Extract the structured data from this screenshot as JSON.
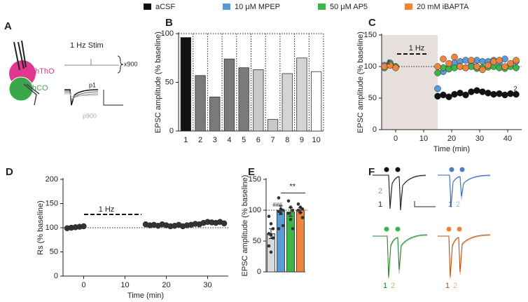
{
  "panel_a": {
    "letter": "A",
    "stim": "1 Hz Stim",
    "repeat": "x900",
    "regions": [
      "hThO",
      "hCO"
    ],
    "traces": [
      "p1",
      "p900"
    ]
  },
  "chart_data": [
    {
      "letter": "B",
      "type": "bar",
      "y_label": "EPSC amplitude (% baseline)",
      "categories": [
        "1",
        "2",
        "3",
        "4",
        "5",
        "6",
        "7",
        "8",
        "9",
        "10"
      ],
      "values": [
        96,
        57,
        35,
        74,
        65,
        63,
        12,
        59,
        75,
        61
      ],
      "colors": [
        "#111111",
        "#7a7a7a",
        "#7a7a7a",
        "#7a7a7a",
        "#7a7a7a",
        "#c9c9c9",
        "#c9c9c9",
        "#d4d4d4",
        "#d4d4d4",
        "#ffffff"
      ],
      "ylim": [
        0,
        100
      ],
      "yticks": [
        0,
        50,
        100
      ],
      "reference_line": 100
    },
    {
      "letter": "C",
      "type": "scatter",
      "x_label": "Time (min)",
      "y_label": "EPSC amplitude (% baseline)",
      "annotations": [
        "1 Hz",
        "1",
        "2"
      ],
      "x": [
        -4,
        -2,
        0,
        15,
        17,
        19,
        21,
        23,
        25,
        27,
        29,
        31,
        33,
        35,
        37,
        39,
        41,
        43
      ],
      "series": [
        {
          "name": "aCSF",
          "color": "#111111",
          "values": [
            100,
            105,
            100,
            53,
            55,
            52,
            56,
            58,
            55,
            60,
            62,
            60,
            58,
            56,
            57,
            55,
            57,
            56
          ]
        },
        {
          "name": "10 μM MPEP",
          "color": "#5b9bd5",
          "values": [
            102,
            106,
            100,
            65,
            92,
            100,
            106,
            108,
            110,
            104,
            110,
            108,
            108,
            110,
            106,
            112,
            104,
            108
          ]
        },
        {
          "name": "50 μM AP5",
          "color": "#3db54a",
          "values": [
            98,
            104,
            100,
            90,
            98,
            96,
            98,
            100,
            98,
            100,
            97,
            98,
            99,
            100,
            98,
            97,
            100,
            98
          ]
        },
        {
          "name": "20 mM iBAPTA",
          "color": "#f0843c",
          "values": [
            100,
            102,
            98,
            100,
            112,
            105,
            115,
            100,
            98,
            110,
            100,
            95,
            102,
            108,
            110,
            100,
            105,
            110
          ]
        }
      ],
      "xlim": [
        -5,
        45
      ],
      "xticks": [
        0,
        10,
        20,
        30,
        40
      ],
      "ylim": [
        0,
        150
      ],
      "yticks": [
        0,
        50,
        100,
        150
      ],
      "reference_line": 100
    },
    {
      "letter": "D",
      "type": "scatter",
      "x_label": "Time (min)",
      "y_label": "Rs (% baseline)",
      "annotations": [
        "1 Hz"
      ],
      "x": [
        -4,
        -3,
        -2,
        -1,
        0,
        15,
        16,
        17,
        18,
        19,
        20,
        21,
        22,
        23,
        24,
        25,
        26,
        27,
        28,
        29,
        30,
        31,
        32,
        33,
        34
      ],
      "series": [
        {
          "color": "#333333",
          "values": [
            99,
            100,
            101,
            102,
            103,
            107,
            105,
            106,
            104,
            107,
            105,
            103,
            104,
            106,
            103,
            105,
            106,
            108,
            107,
            110,
            112,
            111,
            110,
            112,
            109
          ]
        }
      ],
      "xlim": [
        -5,
        35
      ],
      "xticks": [
        0,
        10,
        20,
        30
      ],
      "ylim": [
        0,
        200
      ],
      "yticks": [
        0,
        50,
        100,
        150,
        200
      ],
      "reference_line": 100
    },
    {
      "letter": "E",
      "type": "bar",
      "y_label": "EPSC amplitude (% baseline)",
      "annotations": [
        "###",
        "**"
      ],
      "categories": [
        null,
        null,
        null,
        null
      ],
      "values": [
        62,
        100,
        97,
        100
      ],
      "errors": [
        8,
        7,
        7,
        4
      ],
      "colors": [
        "#d9d9d9",
        "#5b9bd5",
        "#3db54a",
        "#f0843c"
      ],
      "points": [
        [
          90,
          78,
          70,
          62,
          60,
          55,
          42,
          32
        ],
        [
          120,
          102,
          100,
          98,
          95,
          75,
          70
        ],
        [
          115,
          105,
          100,
          95,
          85,
          70
        ],
        [
          110,
          105,
          102,
          100,
          96,
          88
        ]
      ],
      "ylim": [
        0,
        150
      ],
      "yticks": [
        0,
        50,
        100,
        150
      ],
      "reference_line": 100
    }
  ],
  "panel_f": {
    "letter": "F",
    "labels": [
      "1",
      "2"
    ]
  }
}
